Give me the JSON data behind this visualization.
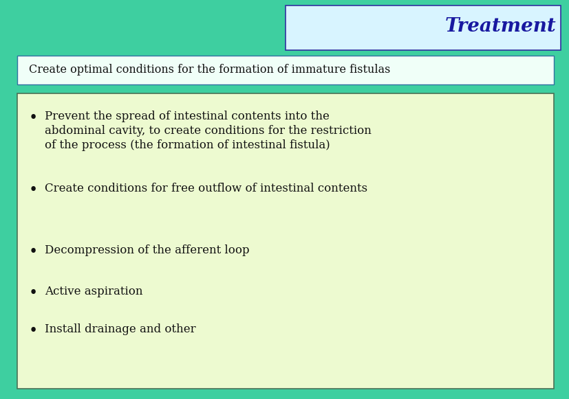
{
  "background_color": "#3ECFA0",
  "title_box_color": "#D8F4FF",
  "title_box_edge_color": "#3030A0",
  "title_text": "Treatment",
  "title_text_color": "#1818A0",
  "subtitle_box_color": "#F0FFF8",
  "subtitle_box_edge_color": "#3070A0",
  "subtitle_text": "Create optimal conditions for the formation of immature fistulas",
  "subtitle_text_color": "#111111",
  "bullet_box_color": "#EDFAD0",
  "bullet_box_edge_color": "#4A7055",
  "bullet_points": [
    "Prevent the spread of intestinal contents into the\nabdominal cavity, to create conditions for the restriction\nof the process (the formation of intestinal fistula)",
    "Create conditions for free outflow of intestinal contents",
    "Decompression of the afferent loop",
    "Active aspiration",
    "Install drainage and other"
  ],
  "bullet_text_color": "#111111",
  "figsize": [
    8.28,
    5.81
  ],
  "dpi": 100
}
